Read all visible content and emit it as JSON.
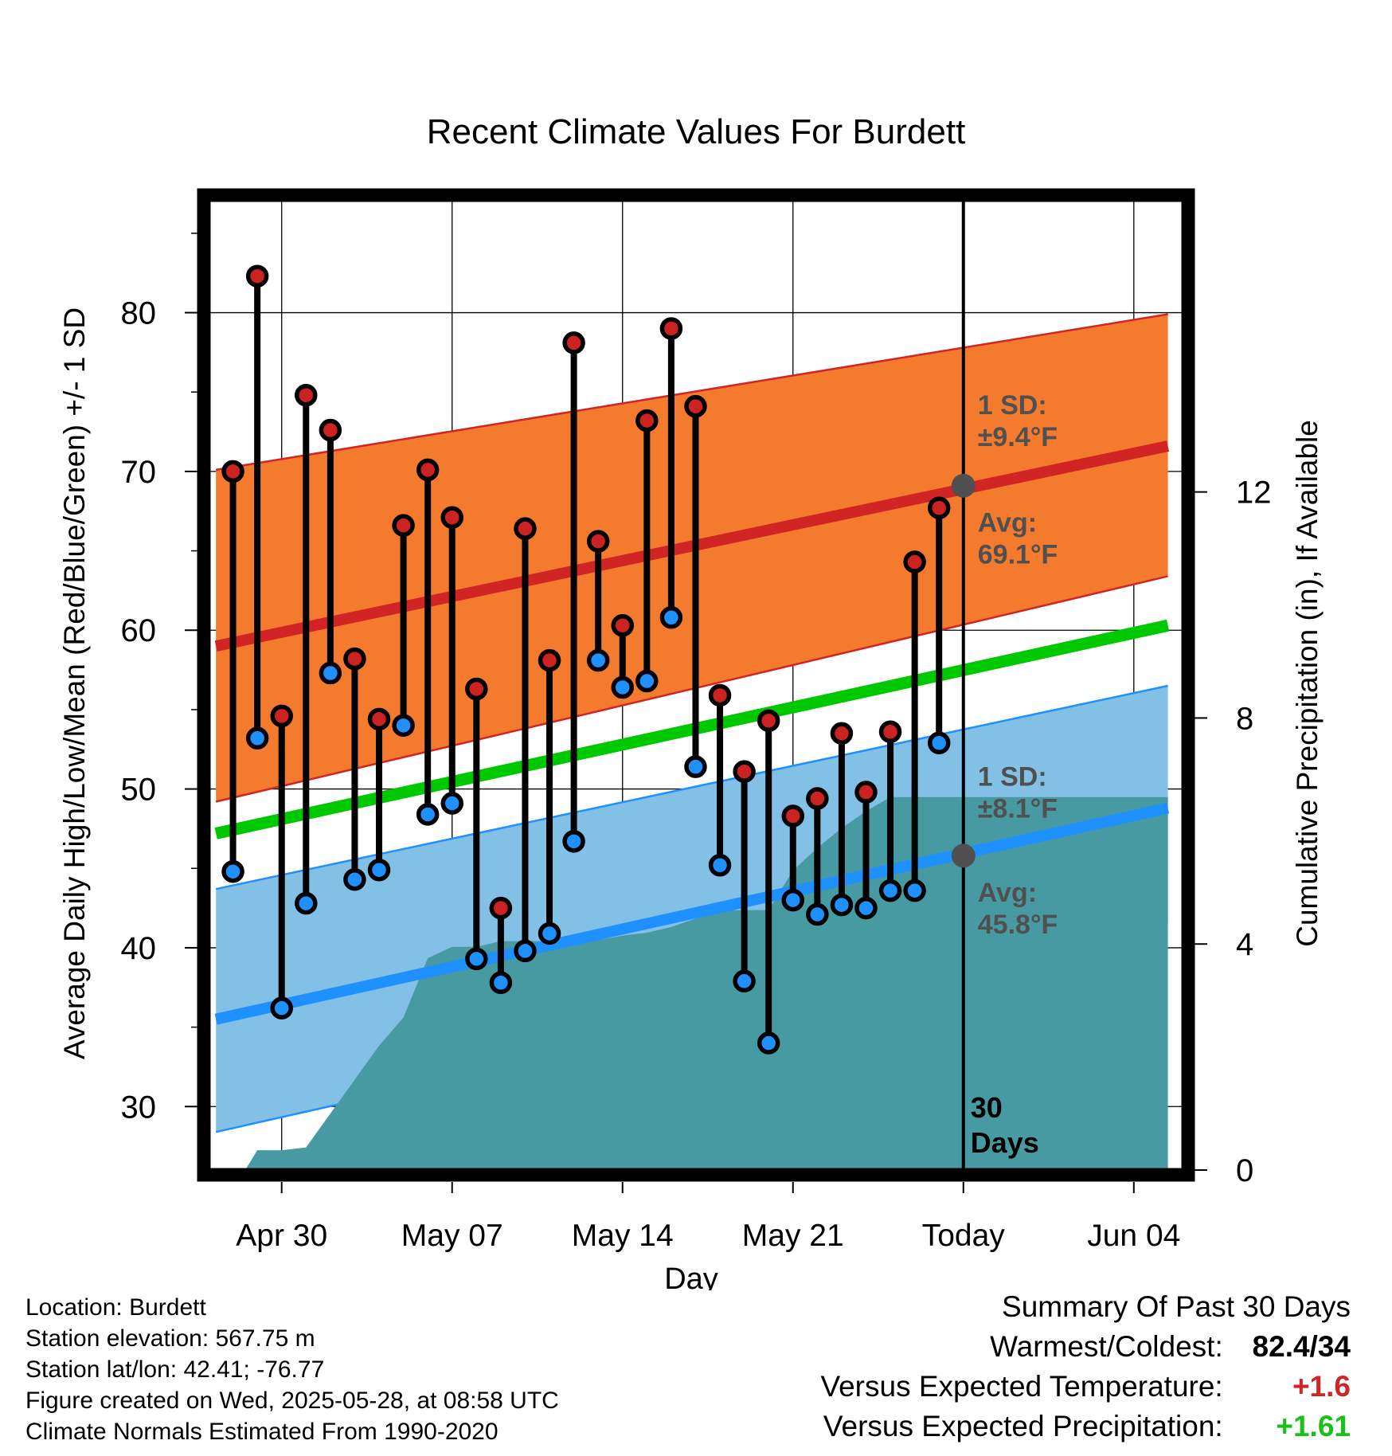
{
  "chart_data": {
    "type": "line",
    "title": "Recent Climate Values For Burdett",
    "xlabel": "Day",
    "ylabel": "Average Daily High/Low/Mean (Red/Blue/Green) +/- 1 SD",
    "y2label": "Cumulative Precipitation (in), If Available",
    "ylim": [
      26,
      87
    ],
    "y2lim": [
      0,
      17.14
    ],
    "xlim": [
      -3.0,
      37.1
    ],
    "x_tick_labels": [
      {
        "x": 0,
        "label": "Apr 30"
      },
      {
        "x": 7,
        "label": "May 07"
      },
      {
        "x": 14,
        "label": "May 14"
      },
      {
        "x": 21,
        "label": "May 21"
      },
      {
        "x": 28,
        "label": "Today"
      },
      {
        "x": 35,
        "label": "Jun 04"
      }
    ],
    "y_ticks": [
      30,
      40,
      50,
      60,
      70,
      80
    ],
    "y2_ticks": [
      0,
      4,
      8,
      12
    ],
    "grid": true,
    "today_x": 28,
    "today_label": [
      "30",
      "Days"
    ],
    "days_x": [
      -2,
      -1,
      0,
      1,
      2,
      3,
      4,
      5,
      6,
      7,
      8,
      9,
      10,
      11,
      12,
      13,
      14,
      15,
      16,
      17,
      18,
      19,
      20,
      21,
      22,
      23,
      24,
      25,
      26,
      27
    ],
    "daily_high": [
      70.0,
      82.3,
      54.6,
      74.8,
      72.6,
      58.2,
      54.4,
      66.6,
      70.1,
      67.1,
      56.3,
      42.5,
      66.4,
      58.1,
      78.1,
      65.6,
      60.3,
      73.2,
      79.0,
      74.1,
      55.9,
      51.1,
      54.3,
      48.3,
      49.4,
      53.5,
      49.8,
      53.6,
      64.3,
      67.7
    ],
    "daily_low": [
      44.8,
      53.2,
      36.2,
      42.8,
      57.3,
      44.3,
      44.9,
      54.0,
      48.4,
      49.1,
      39.3,
      37.8,
      39.8,
      40.9,
      46.7,
      58.1,
      56.4,
      56.8,
      60.8,
      51.4,
      45.2,
      37.9,
      34.0,
      43.0,
      42.1,
      42.7,
      42.5,
      43.6,
      43.6,
      52.9
    ],
    "normals_x": [
      -2.7,
      36.4
    ],
    "normal_high_mean": [
      59.0,
      71.6
    ],
    "normal_high_sd_band": [
      [
        49.2,
        70.1
      ],
      [
        63.4,
        79.9
      ]
    ],
    "normal_mean": [
      47.2,
      60.3
    ],
    "normal_low_mean": [
      35.5,
      48.8
    ],
    "normal_low_sd_band": [
      [
        28.4,
        43.7
      ],
      [
        41.9,
        56.5
      ]
    ],
    "precip_x": [
      -1.5,
      -1,
      0,
      1,
      2,
      3,
      4,
      5,
      6,
      7,
      8,
      9,
      10,
      11,
      12,
      13,
      14,
      15,
      16,
      17,
      18,
      19,
      20,
      21,
      22,
      23,
      24,
      25,
      26,
      27,
      28,
      36.4
    ],
    "precip_cumulative": [
      0.0,
      0.35,
      0.35,
      0.4,
      1.0,
      1.6,
      2.2,
      2.7,
      3.75,
      3.95,
      3.95,
      4.05,
      4.05,
      4.05,
      4.05,
      4.07,
      4.15,
      4.2,
      4.3,
      4.45,
      4.6,
      4.6,
      4.6,
      5.3,
      5.7,
      6.05,
      6.35,
      6.6,
      6.6,
      6.6,
      6.6,
      6.6
    ],
    "annotations": {
      "high_sd": [
        "1 SD:",
        "±9.4°F"
      ],
      "high_avg": [
        "Avg:",
        "69.1°F"
      ],
      "low_sd": [
        "1 SD:",
        "±8.1°F"
      ],
      "low_avg": [
        "Avg:",
        "45.8°F"
      ],
      "today_high_avg": 69.1,
      "today_low_avg": 45.8
    },
    "colors": {
      "high_band": "#f47a2e",
      "high_line": "#d12525",
      "mean_line": "#00c800",
      "low_band": "#82c0e6",
      "low_line": "#1e90ff",
      "precip": "#479aa2",
      "high_dot": "#cc2222",
      "low_dot": "#1e90ff",
      "annotation": "#505050"
    }
  },
  "info": {
    "location": "Location: Burdett",
    "elevation": "Station elevation: 567.75 m",
    "latlon": "Station lat/lon: 42.41; -76.77",
    "created": "Figure created on Wed, 2025-05-28, at 08:58 UTC",
    "normals": "Climate Normals Estimated From 1990-2020"
  },
  "summary": {
    "heading": "Summary Of Past 30 Days",
    "warmest_label": "Warmest/Coldest:",
    "warmest_value": "82.4/34",
    "temp_label": "Versus Expected Temperature:",
    "temp_value": "+1.6",
    "temp_color": "#d12525",
    "precip_label": "Versus Expected Precipitation:",
    "precip_value": "+1.61",
    "precip_color": "#18c018"
  }
}
